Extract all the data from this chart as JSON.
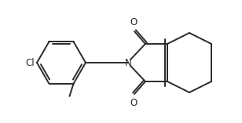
{
  "background_color": "#ffffff",
  "line_color": "#2a2a2a",
  "line_width": 1.4,
  "font_size": 8.5,
  "cl_label": "Cl",
  "n_label": "N",
  "o_label1": "O",
  "o_label2": "O"
}
